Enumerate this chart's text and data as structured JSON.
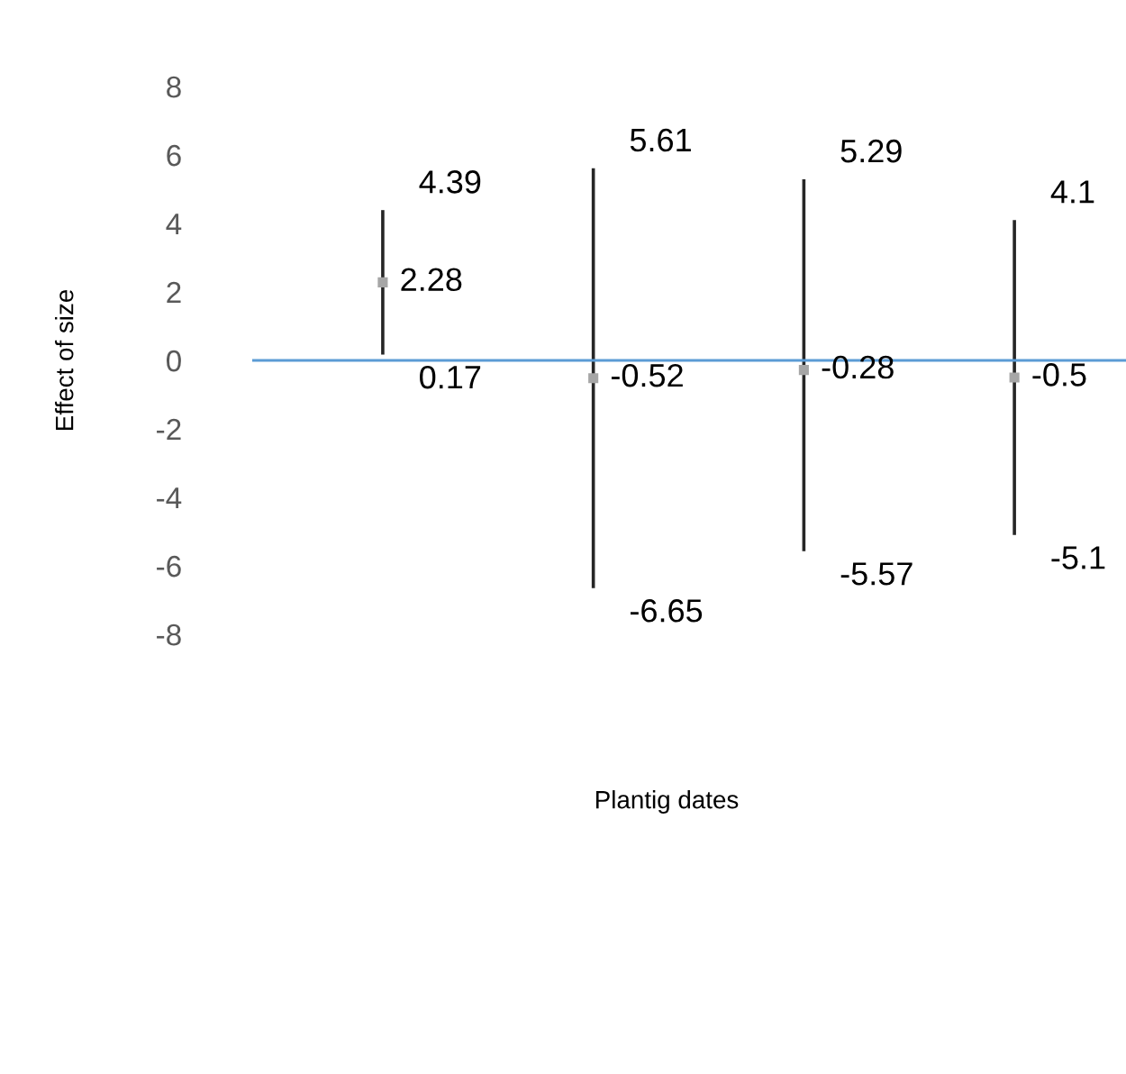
{
  "chart_data": {
    "type": "scatter",
    "ylabel": "Effect of size",
    "categories": [
      null,
      null,
      null,
      null
    ],
    "series": [
      {
        "color": "#a6a6a6",
        "values": [
          2.28,
          -0.52,
          -0.28,
          -0.5
        ],
        "errors": [
          [
            0.17,
            4.39
          ],
          [
            -6.65,
            5.61
          ],
          [
            -5.57,
            5.29
          ],
          [
            -5.1,
            4.1
          ]
        ],
        "value_labels": [
          "2.28",
          "-0.52",
          "-0.28",
          "-0.5"
        ]
      }
    ],
    "annotations": [
      "4.39",
      "0.17",
      "5.61",
      "-6.65",
      "5.29",
      "-5.57",
      "4.1",
      "-5.1",
      "Plantig dates"
    ],
    "ref_lines": [
      {
        "axis": "y",
        "value": 0,
        "color": "#5b9bd5"
      }
    ],
    "ylim": [
      -8,
      8
    ],
    "yticks": [
      -8,
      -6,
      -4,
      -2,
      0,
      2,
      4,
      6,
      8
    ],
    "tick_labels": "y",
    "grid": false,
    "legend": false,
    "marker": "square"
  }
}
